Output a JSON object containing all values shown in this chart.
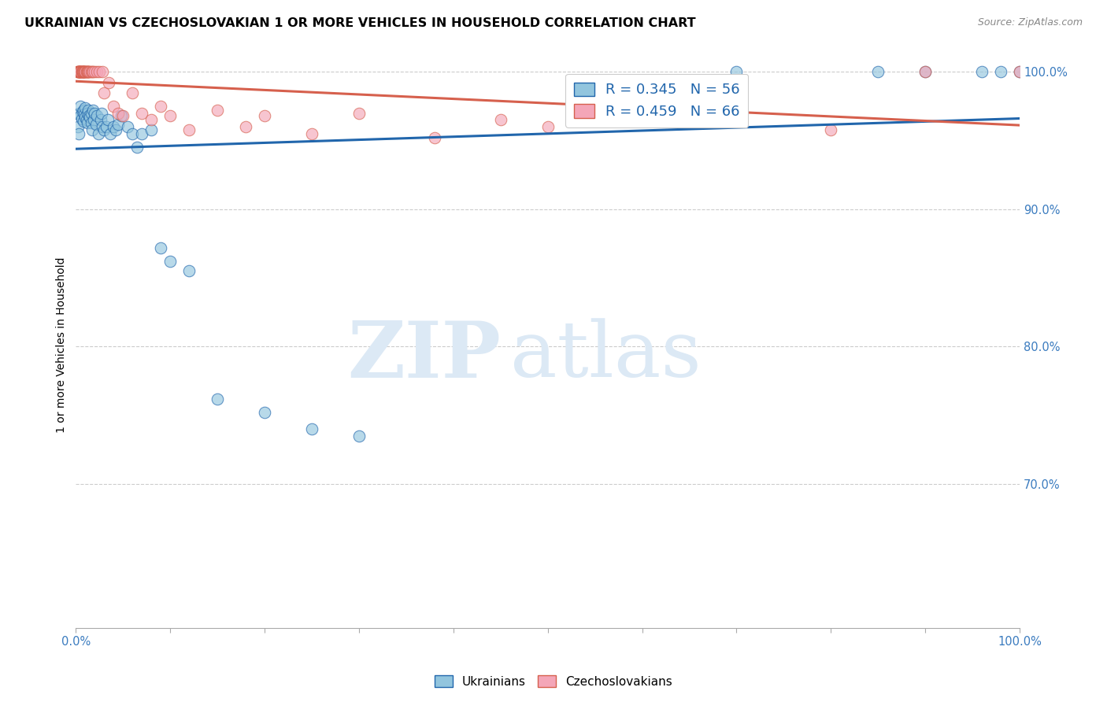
{
  "title": "UKRAINIAN VS CZECHOSLOVAKIAN 1 OR MORE VEHICLES IN HOUSEHOLD CORRELATION CHART",
  "source": "Source: ZipAtlas.com",
  "ylabel": "1 or more Vehicles in Household",
  "xlim": [
    0.0,
    1.0
  ],
  "ylim": [
    0.595,
    1.008
  ],
  "ytick_positions": [
    1.0,
    0.9,
    0.8,
    0.7
  ],
  "ytick_labels": [
    "100.0%",
    "90.0%",
    "80.0%",
    "70.0%"
  ],
  "legend_text1": "R = 0.345   N = 56",
  "legend_text2": "R = 0.459   N = 66",
  "legend_labels": [
    "Ukrainians",
    "Czechoslovakians"
  ],
  "color_blue": "#92c5de",
  "color_pink": "#f4a6b8",
  "color_line_blue": "#2166ac",
  "color_line_pink": "#d6604d",
  "watermark_zip": "ZIP",
  "watermark_atlas": "atlas",
  "title_fontsize": 11.5,
  "tick_fontsize": 10.5,
  "ukr_x": [
    0.002,
    0.003,
    0.004,
    0.005,
    0.005,
    0.006,
    0.007,
    0.008,
    0.008,
    0.009,
    0.01,
    0.01,
    0.011,
    0.012,
    0.012,
    0.013,
    0.014,
    0.015,
    0.016,
    0.016,
    0.017,
    0.018,
    0.019,
    0.02,
    0.021,
    0.022,
    0.024,
    0.026,
    0.027,
    0.028,
    0.03,
    0.032,
    0.034,
    0.036,
    0.04,
    0.042,
    0.045,
    0.048,
    0.055,
    0.06,
    0.065,
    0.07,
    0.08,
    0.09,
    0.1,
    0.12,
    0.15,
    0.2,
    0.25,
    0.3,
    0.7,
    0.85,
    0.9,
    0.96,
    0.98,
    1.0
  ],
  "ukr_y": [
    0.96,
    0.955,
    0.97,
    0.968,
    0.975,
    0.966,
    0.971,
    0.964,
    0.972,
    0.969,
    0.974,
    0.967,
    0.965,
    0.97,
    0.963,
    0.972,
    0.968,
    0.967,
    0.97,
    0.963,
    0.958,
    0.972,
    0.965,
    0.97,
    0.962,
    0.968,
    0.955,
    0.965,
    0.97,
    0.96,
    0.958,
    0.96,
    0.965,
    0.955,
    0.96,
    0.958,
    0.962,
    0.968,
    0.96,
    0.955,
    0.945,
    0.955,
    0.958,
    0.872,
    0.862,
    0.855,
    0.762,
    0.752,
    0.74,
    0.735,
    1.0,
    1.0,
    1.0,
    1.0,
    1.0,
    1.0
  ],
  "czk_x": [
    0.001,
    0.002,
    0.002,
    0.003,
    0.003,
    0.003,
    0.004,
    0.004,
    0.004,
    0.005,
    0.005,
    0.005,
    0.005,
    0.006,
    0.006,
    0.006,
    0.007,
    0.007,
    0.007,
    0.008,
    0.008,
    0.008,
    0.009,
    0.009,
    0.01,
    0.01,
    0.01,
    0.011,
    0.011,
    0.012,
    0.012,
    0.013,
    0.013,
    0.014,
    0.015,
    0.016,
    0.017,
    0.018,
    0.02,
    0.022,
    0.025,
    0.028,
    0.03,
    0.035,
    0.04,
    0.045,
    0.05,
    0.06,
    0.07,
    0.08,
    0.09,
    0.1,
    0.12,
    0.15,
    0.18,
    0.2,
    0.25,
    0.3,
    0.38,
    0.45,
    0.5,
    0.6,
    0.7,
    0.8,
    0.9,
    1.0
  ],
  "czk_y": [
    1.0,
    1.0,
    1.0,
    1.0,
    1.0,
    1.0,
    1.0,
    1.0,
    1.0,
    1.0,
    1.0,
    1.0,
    1.0,
    1.0,
    1.0,
    1.0,
    1.0,
    1.0,
    1.0,
    1.0,
    1.0,
    1.0,
    1.0,
    1.0,
    1.0,
    1.0,
    1.0,
    1.0,
    1.0,
    1.0,
    1.0,
    1.0,
    1.0,
    1.0,
    1.0,
    1.0,
    1.0,
    1.0,
    1.0,
    1.0,
    1.0,
    1.0,
    0.985,
    0.992,
    0.975,
    0.97,
    0.968,
    0.985,
    0.97,
    0.965,
    0.975,
    0.968,
    0.958,
    0.972,
    0.96,
    0.968,
    0.955,
    0.97,
    0.952,
    0.965,
    0.96,
    0.972,
    0.968,
    0.958,
    1.0,
    1.0
  ]
}
